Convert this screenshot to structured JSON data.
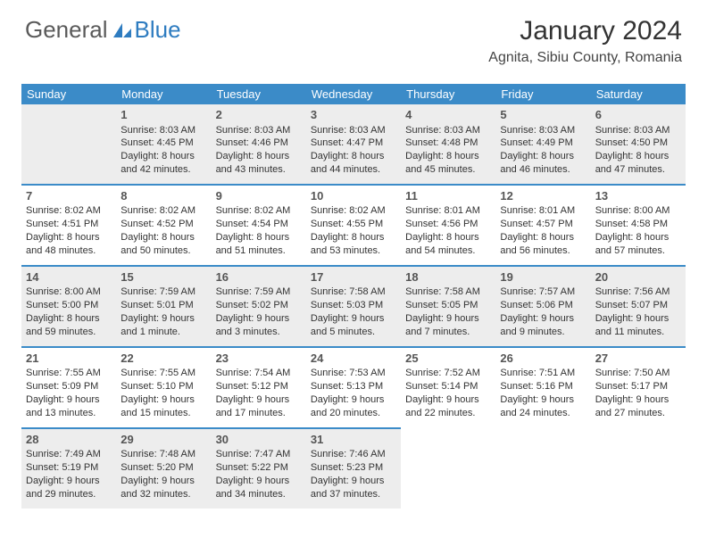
{
  "logo": {
    "text_gray": "General",
    "text_blue": "Blue"
  },
  "title": "January 2024",
  "location": "Agnita, Sibiu County, Romania",
  "colors": {
    "header_bg": "#3b8bc8",
    "header_text": "#ffffff",
    "alt_row_bg": "#ededed",
    "divider": "#3b8bc8",
    "logo_gray": "#5a5a5a",
    "logo_blue": "#2e7cc0"
  },
  "weekdays": [
    "Sunday",
    "Monday",
    "Tuesday",
    "Wednesday",
    "Thursday",
    "Friday",
    "Saturday"
  ],
  "weeks": [
    [
      null,
      {
        "n": "1",
        "sr": "Sunrise: 8:03 AM",
        "ss": "Sunset: 4:45 PM",
        "d1": "Daylight: 8 hours",
        "d2": "and 42 minutes."
      },
      {
        "n": "2",
        "sr": "Sunrise: 8:03 AM",
        "ss": "Sunset: 4:46 PM",
        "d1": "Daylight: 8 hours",
        "d2": "and 43 minutes."
      },
      {
        "n": "3",
        "sr": "Sunrise: 8:03 AM",
        "ss": "Sunset: 4:47 PM",
        "d1": "Daylight: 8 hours",
        "d2": "and 44 minutes."
      },
      {
        "n": "4",
        "sr": "Sunrise: 8:03 AM",
        "ss": "Sunset: 4:48 PM",
        "d1": "Daylight: 8 hours",
        "d2": "and 45 minutes."
      },
      {
        "n": "5",
        "sr": "Sunrise: 8:03 AM",
        "ss": "Sunset: 4:49 PM",
        "d1": "Daylight: 8 hours",
        "d2": "and 46 minutes."
      },
      {
        "n": "6",
        "sr": "Sunrise: 8:03 AM",
        "ss": "Sunset: 4:50 PM",
        "d1": "Daylight: 8 hours",
        "d2": "and 47 minutes."
      }
    ],
    [
      {
        "n": "7",
        "sr": "Sunrise: 8:02 AM",
        "ss": "Sunset: 4:51 PM",
        "d1": "Daylight: 8 hours",
        "d2": "and 48 minutes."
      },
      {
        "n": "8",
        "sr": "Sunrise: 8:02 AM",
        "ss": "Sunset: 4:52 PM",
        "d1": "Daylight: 8 hours",
        "d2": "and 50 minutes."
      },
      {
        "n": "9",
        "sr": "Sunrise: 8:02 AM",
        "ss": "Sunset: 4:54 PM",
        "d1": "Daylight: 8 hours",
        "d2": "and 51 minutes."
      },
      {
        "n": "10",
        "sr": "Sunrise: 8:02 AM",
        "ss": "Sunset: 4:55 PM",
        "d1": "Daylight: 8 hours",
        "d2": "and 53 minutes."
      },
      {
        "n": "11",
        "sr": "Sunrise: 8:01 AM",
        "ss": "Sunset: 4:56 PM",
        "d1": "Daylight: 8 hours",
        "d2": "and 54 minutes."
      },
      {
        "n": "12",
        "sr": "Sunrise: 8:01 AM",
        "ss": "Sunset: 4:57 PM",
        "d1": "Daylight: 8 hours",
        "d2": "and 56 minutes."
      },
      {
        "n": "13",
        "sr": "Sunrise: 8:00 AM",
        "ss": "Sunset: 4:58 PM",
        "d1": "Daylight: 8 hours",
        "d2": "and 57 minutes."
      }
    ],
    [
      {
        "n": "14",
        "sr": "Sunrise: 8:00 AM",
        "ss": "Sunset: 5:00 PM",
        "d1": "Daylight: 8 hours",
        "d2": "and 59 minutes."
      },
      {
        "n": "15",
        "sr": "Sunrise: 7:59 AM",
        "ss": "Sunset: 5:01 PM",
        "d1": "Daylight: 9 hours",
        "d2": "and 1 minute."
      },
      {
        "n": "16",
        "sr": "Sunrise: 7:59 AM",
        "ss": "Sunset: 5:02 PM",
        "d1": "Daylight: 9 hours",
        "d2": "and 3 minutes."
      },
      {
        "n": "17",
        "sr": "Sunrise: 7:58 AM",
        "ss": "Sunset: 5:03 PM",
        "d1": "Daylight: 9 hours",
        "d2": "and 5 minutes."
      },
      {
        "n": "18",
        "sr": "Sunrise: 7:58 AM",
        "ss": "Sunset: 5:05 PM",
        "d1": "Daylight: 9 hours",
        "d2": "and 7 minutes."
      },
      {
        "n": "19",
        "sr": "Sunrise: 7:57 AM",
        "ss": "Sunset: 5:06 PM",
        "d1": "Daylight: 9 hours",
        "d2": "and 9 minutes."
      },
      {
        "n": "20",
        "sr": "Sunrise: 7:56 AM",
        "ss": "Sunset: 5:07 PM",
        "d1": "Daylight: 9 hours",
        "d2": "and 11 minutes."
      }
    ],
    [
      {
        "n": "21",
        "sr": "Sunrise: 7:55 AM",
        "ss": "Sunset: 5:09 PM",
        "d1": "Daylight: 9 hours",
        "d2": "and 13 minutes."
      },
      {
        "n": "22",
        "sr": "Sunrise: 7:55 AM",
        "ss": "Sunset: 5:10 PM",
        "d1": "Daylight: 9 hours",
        "d2": "and 15 minutes."
      },
      {
        "n": "23",
        "sr": "Sunrise: 7:54 AM",
        "ss": "Sunset: 5:12 PM",
        "d1": "Daylight: 9 hours",
        "d2": "and 17 minutes."
      },
      {
        "n": "24",
        "sr": "Sunrise: 7:53 AM",
        "ss": "Sunset: 5:13 PM",
        "d1": "Daylight: 9 hours",
        "d2": "and 20 minutes."
      },
      {
        "n": "25",
        "sr": "Sunrise: 7:52 AM",
        "ss": "Sunset: 5:14 PM",
        "d1": "Daylight: 9 hours",
        "d2": "and 22 minutes."
      },
      {
        "n": "26",
        "sr": "Sunrise: 7:51 AM",
        "ss": "Sunset: 5:16 PM",
        "d1": "Daylight: 9 hours",
        "d2": "and 24 minutes."
      },
      {
        "n": "27",
        "sr": "Sunrise: 7:50 AM",
        "ss": "Sunset: 5:17 PM",
        "d1": "Daylight: 9 hours",
        "d2": "and 27 minutes."
      }
    ],
    [
      {
        "n": "28",
        "sr": "Sunrise: 7:49 AM",
        "ss": "Sunset: 5:19 PM",
        "d1": "Daylight: 9 hours",
        "d2": "and 29 minutes."
      },
      {
        "n": "29",
        "sr": "Sunrise: 7:48 AM",
        "ss": "Sunset: 5:20 PM",
        "d1": "Daylight: 9 hours",
        "d2": "and 32 minutes."
      },
      {
        "n": "30",
        "sr": "Sunrise: 7:47 AM",
        "ss": "Sunset: 5:22 PM",
        "d1": "Daylight: 9 hours",
        "d2": "and 34 minutes."
      },
      {
        "n": "31",
        "sr": "Sunrise: 7:46 AM",
        "ss": "Sunset: 5:23 PM",
        "d1": "Daylight: 9 hours",
        "d2": "and 37 minutes."
      },
      null,
      null,
      null
    ]
  ]
}
